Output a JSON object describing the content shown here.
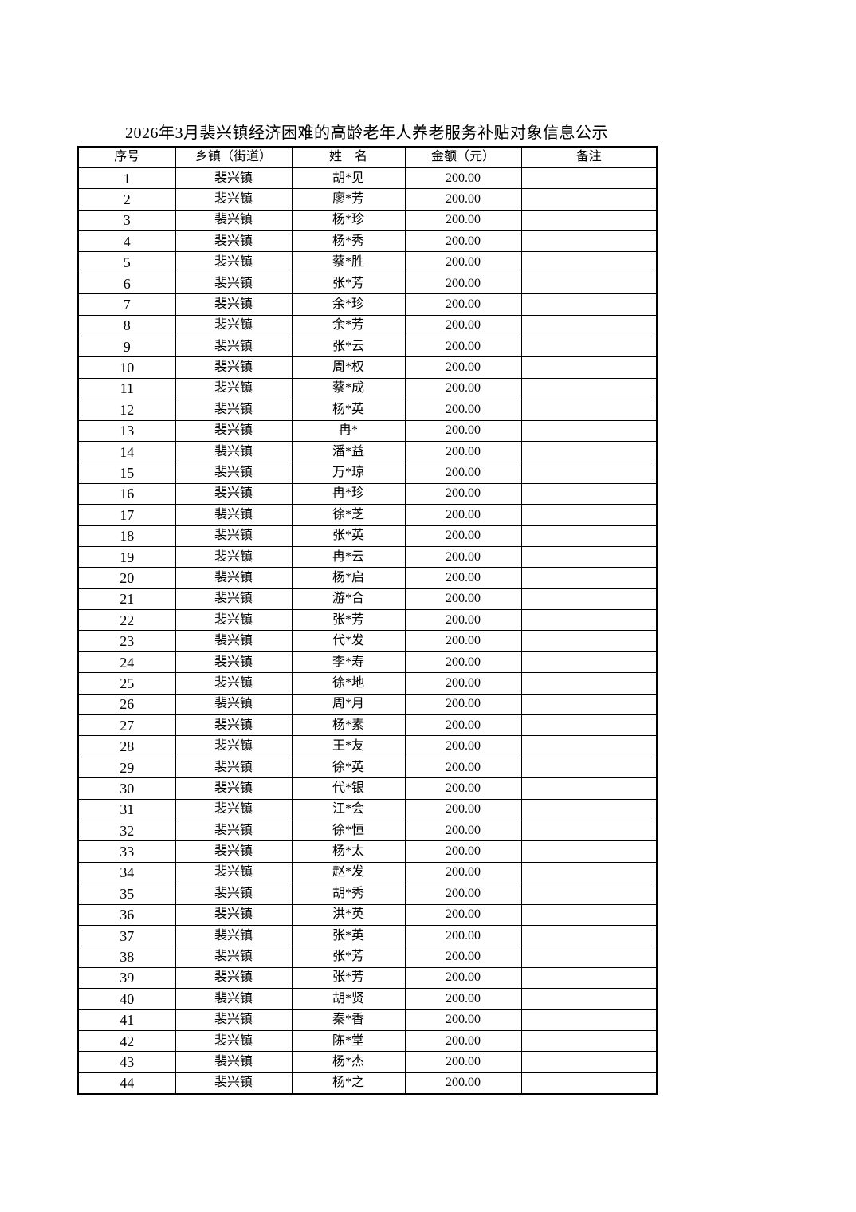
{
  "page": {
    "title": "2026年3月裴兴镇经济困难的高龄老年人养老服务补贴对象信息公示"
  },
  "colors": {
    "background": "#ffffff",
    "text": "#000000",
    "border": "#000000"
  },
  "table": {
    "headers": [
      "序号",
      "乡镇（街道）",
      "姓　名",
      "金额（元）",
      "备注"
    ],
    "rows": [
      [
        "1",
        "裴兴镇",
        "胡*见",
        "200.00",
        ""
      ],
      [
        "2",
        "裴兴镇",
        "廖*芳",
        "200.00",
        ""
      ],
      [
        "3",
        "裴兴镇",
        "杨*珍",
        "200.00",
        ""
      ],
      [
        "4",
        "裴兴镇",
        "杨*秀",
        "200.00",
        ""
      ],
      [
        "5",
        "裴兴镇",
        "蔡*胜",
        "200.00",
        ""
      ],
      [
        "6",
        "裴兴镇",
        "张*芳",
        "200.00",
        ""
      ],
      [
        "7",
        "裴兴镇",
        "余*珍",
        "200.00",
        ""
      ],
      [
        "8",
        "裴兴镇",
        "余*芳",
        "200.00",
        ""
      ],
      [
        "9",
        "裴兴镇",
        "张*云",
        "200.00",
        ""
      ],
      [
        "10",
        "裴兴镇",
        "周*权",
        "200.00",
        ""
      ],
      [
        "11",
        "裴兴镇",
        "蔡*成",
        "200.00",
        ""
      ],
      [
        "12",
        "裴兴镇",
        "杨*英",
        "200.00",
        ""
      ],
      [
        "13",
        "裴兴镇",
        "冉*",
        "200.00",
        ""
      ],
      [
        "14",
        "裴兴镇",
        "潘*益",
        "200.00",
        ""
      ],
      [
        "15",
        "裴兴镇",
        "万*琼",
        "200.00",
        ""
      ],
      [
        "16",
        "裴兴镇",
        "冉*珍",
        "200.00",
        ""
      ],
      [
        "17",
        "裴兴镇",
        "徐*芝",
        "200.00",
        ""
      ],
      [
        "18",
        "裴兴镇",
        "张*英",
        "200.00",
        ""
      ],
      [
        "19",
        "裴兴镇",
        "冉*云",
        "200.00",
        ""
      ],
      [
        "20",
        "裴兴镇",
        "杨*启",
        "200.00",
        ""
      ],
      [
        "21",
        "裴兴镇",
        "游*合",
        "200.00",
        ""
      ],
      [
        "22",
        "裴兴镇",
        "张*芳",
        "200.00",
        ""
      ],
      [
        "23",
        "裴兴镇",
        "代*发",
        "200.00",
        ""
      ],
      [
        "24",
        "裴兴镇",
        "李*寿",
        "200.00",
        ""
      ],
      [
        "25",
        "裴兴镇",
        "徐*地",
        "200.00",
        ""
      ],
      [
        "26",
        "裴兴镇",
        "周*月",
        "200.00",
        ""
      ],
      [
        "27",
        "裴兴镇",
        "杨*素",
        "200.00",
        ""
      ],
      [
        "28",
        "裴兴镇",
        "王*友",
        "200.00",
        ""
      ],
      [
        "29",
        "裴兴镇",
        "徐*英",
        "200.00",
        ""
      ],
      [
        "30",
        "裴兴镇",
        "代*银",
        "200.00",
        ""
      ],
      [
        "31",
        "裴兴镇",
        "江*会",
        "200.00",
        ""
      ],
      [
        "32",
        "裴兴镇",
        "徐*恒",
        "200.00",
        ""
      ],
      [
        "33",
        "裴兴镇",
        "杨*太",
        "200.00",
        ""
      ],
      [
        "34",
        "裴兴镇",
        "赵*发",
        "200.00",
        ""
      ],
      [
        "35",
        "裴兴镇",
        "胡*秀",
        "200.00",
        ""
      ],
      [
        "36",
        "裴兴镇",
        "洪*英",
        "200.00",
        ""
      ],
      [
        "37",
        "裴兴镇",
        "张*英",
        "200.00",
        ""
      ],
      [
        "38",
        "裴兴镇",
        "张*芳",
        "200.00",
        ""
      ],
      [
        "39",
        "裴兴镇",
        "张*芳",
        "200.00",
        ""
      ],
      [
        "40",
        "裴兴镇",
        "胡*贤",
        "200.00",
        ""
      ],
      [
        "41",
        "裴兴镇",
        "秦*香",
        "200.00",
        ""
      ],
      [
        "42",
        "裴兴镇",
        "陈*堂",
        "200.00",
        ""
      ],
      [
        "43",
        "裴兴镇",
        "杨*杰",
        "200.00",
        ""
      ],
      [
        "44",
        "裴兴镇",
        "杨*之",
        "200.00",
        ""
      ]
    ]
  }
}
